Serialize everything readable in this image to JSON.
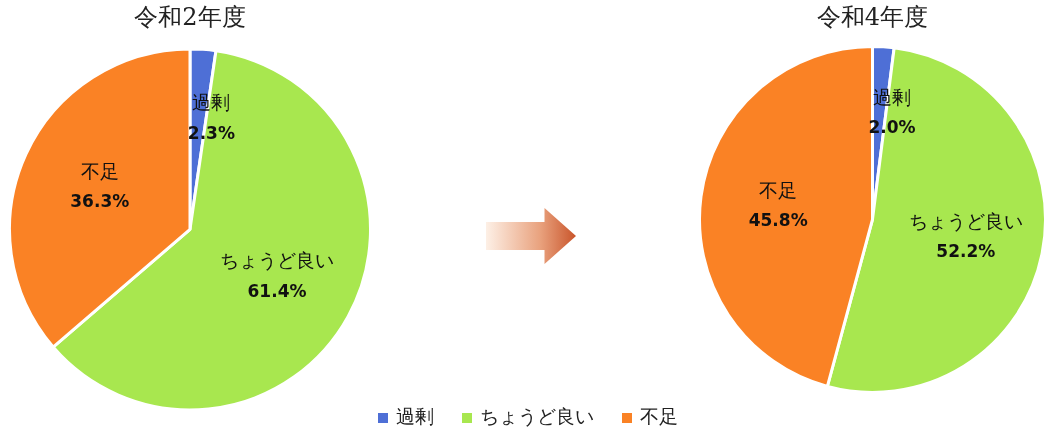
{
  "chart_data": [
    {
      "type": "pie",
      "title": "令和2年度",
      "categories": [
        "過剰",
        "ちょうど良い",
        "不足"
      ],
      "values": [
        2.3,
        61.4,
        36.3
      ],
      "colors": [
        "#4e6fd6",
        "#a8e74f",
        "#fa8225"
      ],
      "value_labels": [
        "2.3%",
        "61.4%",
        "36.3%"
      ],
      "legend": "bottom"
    },
    {
      "type": "pie",
      "title": "令和4年度",
      "categories": [
        "過剰",
        "ちょうど良い",
        "不足"
      ],
      "values": [
        2.0,
        52.2,
        45.8
      ],
      "colors": [
        "#4e6fd6",
        "#a8e74f",
        "#fa8225"
      ],
      "value_labels": [
        "2.0%",
        "52.2%",
        "45.8%"
      ]
    }
  ]
}
